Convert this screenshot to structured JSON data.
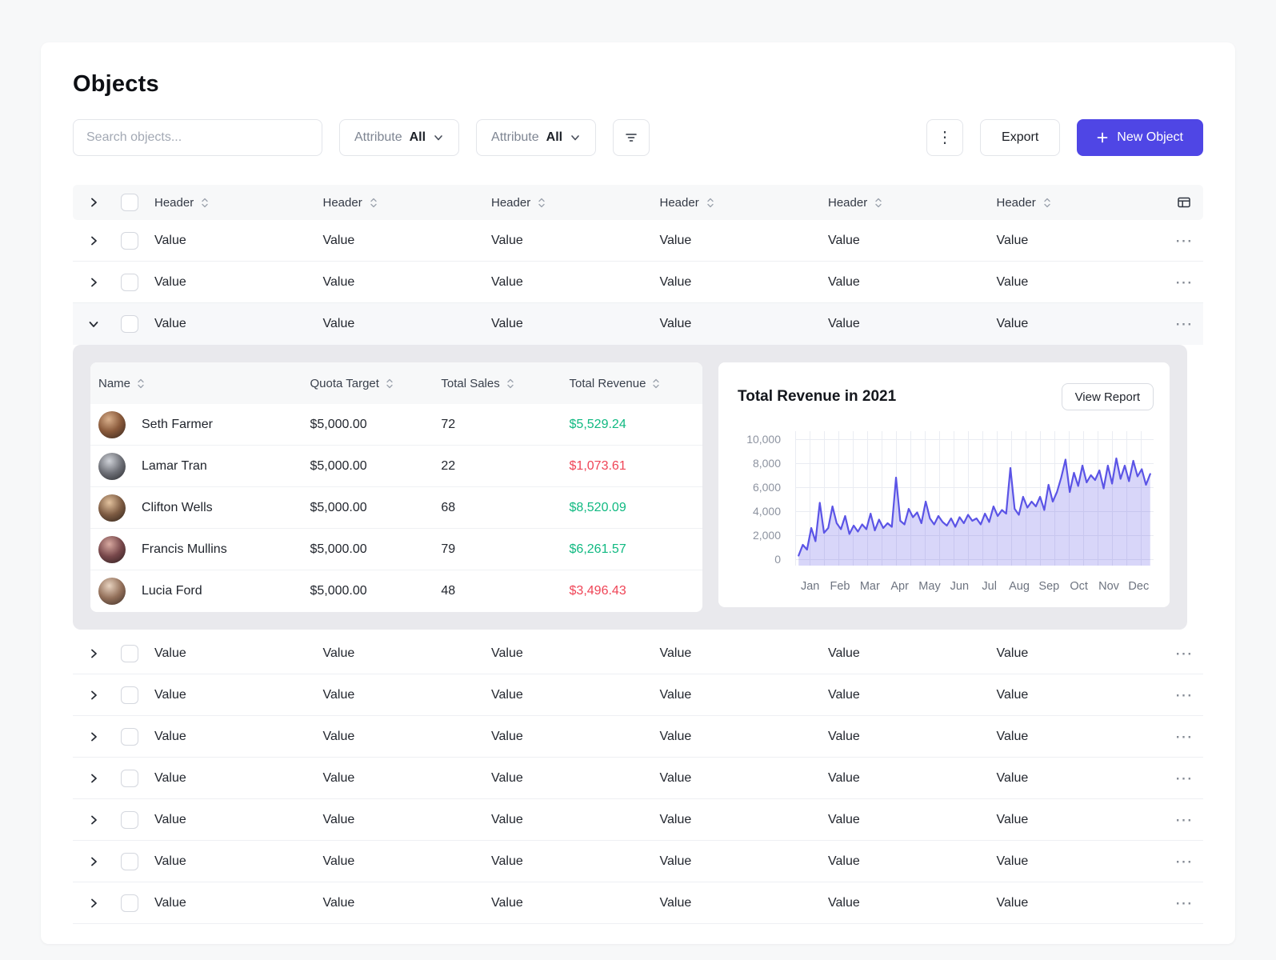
{
  "colors": {
    "accent": "#4f46e5",
    "positive": "#10b981",
    "negative": "#ef4456",
    "chart_line": "#5b54e6",
    "chart_fill": "rgba(91,84,230,0.24)"
  },
  "page": {
    "title": "Objects"
  },
  "toolbar": {
    "search_placeholder": "Search objects...",
    "filters": [
      {
        "label": "Attribute",
        "value": "All"
      },
      {
        "label": "Attribute",
        "value": "All"
      }
    ],
    "export_label": "Export",
    "new_object_label": "New Object"
  },
  "table": {
    "headers": [
      "Header",
      "Header",
      "Header",
      "Header",
      "Header",
      "Header"
    ],
    "rows_before": [
      {
        "cells": [
          "Value",
          "Value",
          "Value",
          "Value",
          "Value",
          "Value"
        ]
      },
      {
        "cells": [
          "Value",
          "Value",
          "Value",
          "Value",
          "Value",
          "Value"
        ]
      },
      {
        "cells": [
          "Value",
          "Value",
          "Value",
          "Value",
          "Value",
          "Value"
        ],
        "expanded": true
      }
    ],
    "rows_after": [
      {
        "cells": [
          "Value",
          "Value",
          "Value",
          "Value",
          "Value",
          "Value"
        ]
      },
      {
        "cells": [
          "Value",
          "Value",
          "Value",
          "Value",
          "Value",
          "Value"
        ]
      },
      {
        "cells": [
          "Value",
          "Value",
          "Value",
          "Value",
          "Value",
          "Value"
        ]
      },
      {
        "cells": [
          "Value",
          "Value",
          "Value",
          "Value",
          "Value",
          "Value"
        ]
      },
      {
        "cells": [
          "Value",
          "Value",
          "Value",
          "Value",
          "Value",
          "Value"
        ]
      },
      {
        "cells": [
          "Value",
          "Value",
          "Value",
          "Value",
          "Value",
          "Value"
        ]
      },
      {
        "cells": [
          "Value",
          "Value",
          "Value",
          "Value",
          "Value",
          "Value"
        ]
      }
    ]
  },
  "expanded": {
    "view_report_label": "View Report",
    "subtable": {
      "columns": [
        "Name",
        "Quota Target",
        "Total Sales",
        "Total Revenue"
      ],
      "rows": [
        {
          "name": "Seth Farmer",
          "quota_target": "$5,000.00",
          "total_sales": "72",
          "total_revenue": "$5,529.24",
          "positive": true
        },
        {
          "name": "Lamar Tran",
          "quota_target": "$5,000.00",
          "total_sales": "22",
          "total_revenue": "$1,073.61",
          "positive": false
        },
        {
          "name": "Clifton Wells",
          "quota_target": "$5,000.00",
          "total_sales": "68",
          "total_revenue": "$8,520.09",
          "positive": true
        },
        {
          "name": "Francis Mullins",
          "quota_target": "$5,000.00",
          "total_sales": "79",
          "total_revenue": "$6,261.57",
          "positive": true
        },
        {
          "name": "Lucia Ford",
          "quota_target": "$5,000.00",
          "total_sales": "48",
          "total_revenue": "$3,496.43",
          "positive": false
        }
      ]
    }
  },
  "chart_data": {
    "type": "line",
    "title": "Total Revenue in 2021",
    "x_labels": [
      "Jan",
      "Feb",
      "Mar",
      "Apr",
      "May",
      "Jun",
      "Jul",
      "Aug",
      "Sep",
      "Oct",
      "Nov",
      "Dec"
    ],
    "ylim": [
      0,
      10000
    ],
    "yticks": [
      {
        "label": "10,000",
        "value": 10000
      },
      {
        "label": "8,000",
        "value": 8000
      },
      {
        "label": "6,000",
        "value": 6000
      },
      {
        "label": "4,000",
        "value": 4000
      },
      {
        "label": "2,000",
        "value": 2000
      },
      {
        "label": "0",
        "value": 0
      }
    ],
    "grid": true,
    "legend": false,
    "series": [
      {
        "name": "Total Revenue",
        "values": [
          300,
          1200,
          800,
          2600,
          1500,
          4700,
          2200,
          2600,
          4400,
          3000,
          2500,
          3600,
          2100,
          2800,
          2300,
          2900,
          2500,
          3800,
          2400,
          3300,
          2600,
          3000,
          2700,
          6800,
          3200,
          2900,
          4200,
          3500,
          3900,
          3000,
          4800,
          3400,
          2900,
          3600,
          3100,
          2800,
          3400,
          2700,
          3500,
          3000,
          3700,
          3200,
          3400,
          2900,
          3800,
          3100,
          4400,
          3600,
          4100,
          3800,
          7600,
          4200,
          3700,
          5200,
          4300,
          4800,
          4400,
          5200,
          4100,
          6200,
          4800,
          5600,
          6800,
          8300,
          5600,
          7200,
          6100,
          7800,
          6400,
          7000,
          6600,
          7400,
          5900,
          7800,
          6300,
          8400,
          6700,
          7800,
          6500,
          8200,
          6900,
          7500,
          6200,
          7100
        ]
      }
    ]
  }
}
